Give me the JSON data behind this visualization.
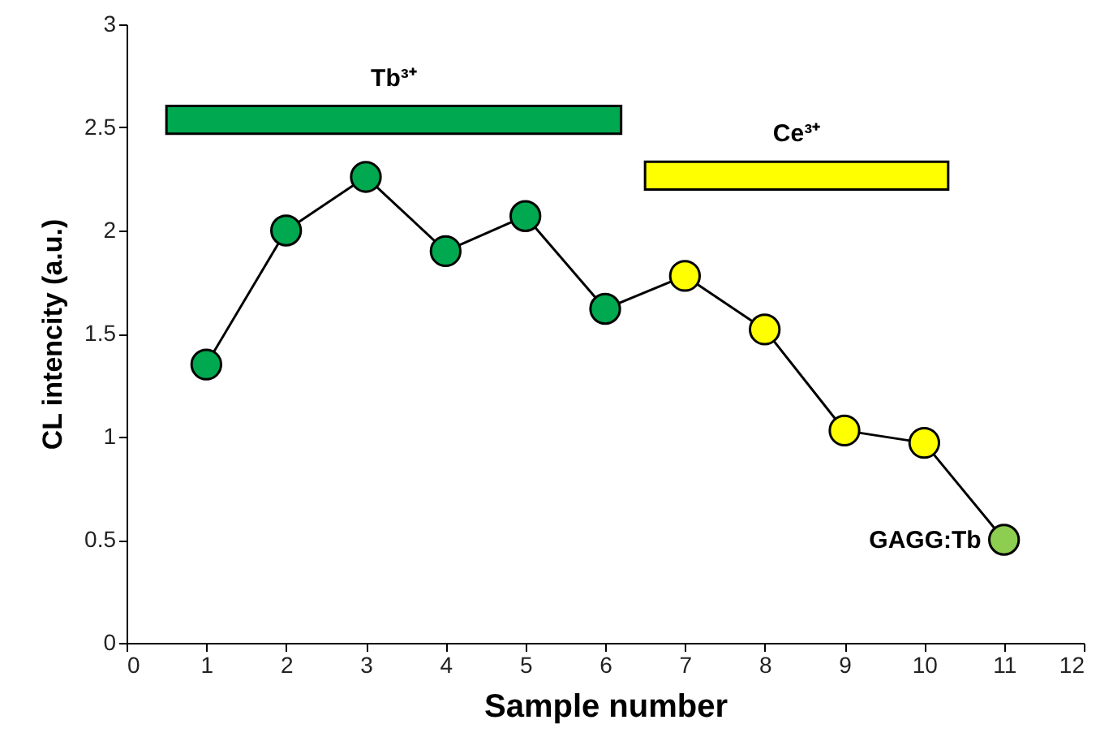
{
  "chart_data": {
    "type": "line",
    "x": [
      1,
      2,
      3,
      4,
      5,
      6,
      7,
      8,
      9,
      10,
      11
    ],
    "series": [
      {
        "color": "#000000",
        "colors": [
          "#00a84f",
          "#00a84f",
          "#00a84f",
          "#00a84f",
          "#00a84f",
          "#00a84f",
          "#ffff00",
          "#ffff00",
          "#ffff00",
          "#ffff00",
          "#8dcd50"
        ],
        "values": [
          1.35,
          2.0,
          2.26,
          1.9,
          2.07,
          1.62,
          1.78,
          1.52,
          1.03,
          0.97,
          0.5
        ]
      }
    ],
    "xlabel": "Sample number",
    "ylabel": "CL intencity (a.u.)",
    "xlim": [
      0,
      12
    ],
    "xticks": [
      0,
      1,
      2,
      3,
      4,
      5,
      6,
      7,
      8,
      9,
      10,
      11,
      12
    ],
    "ylim": [
      0,
      3
    ],
    "yticks": [
      0,
      0.5,
      1,
      1.5,
      2,
      2.5,
      3
    ],
    "marker": "circle",
    "grid": false,
    "bands": [
      {
        "axis": "x",
        "from": 0.5,
        "to": 6.2,
        "label": "Tb³⁺",
        "color": "#00a84f"
      },
      {
        "axis": "x",
        "from": 6.5,
        "to": 10.3,
        "label": "Ce³⁺",
        "color": "#ffff00"
      }
    ],
    "annotations": [
      {
        "text": "GAGG:Tb",
        "x": 11,
        "y": 0.5
      }
    ]
  }
}
